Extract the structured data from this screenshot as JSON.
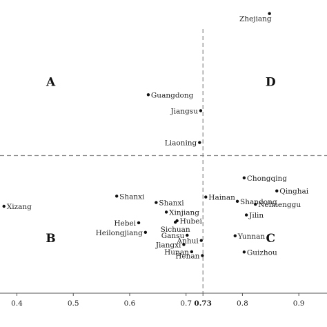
{
  "chart_data": {
    "type": "scatter",
    "title": "",
    "xlabel": "",
    "ylabel": "",
    "xlim": [
      0.37,
      0.95
    ],
    "ylim": [
      0,
      1
    ],
    "x_ticks": [
      {
        "value": 0.4,
        "label": "0.4",
        "bold": false
      },
      {
        "value": 0.5,
        "label": "0.5",
        "bold": false
      },
      {
        "value": 0.6,
        "label": "0.6",
        "bold": false
      },
      {
        "value": 0.7,
        "label": "0.7",
        "bold": false
      },
      {
        "value": 0.73,
        "label": "0.73",
        "bold": true
      },
      {
        "value": 0.8,
        "label": "0.8",
        "bold": false
      },
      {
        "value": 0.9,
        "label": "0.9",
        "bold": false
      }
    ],
    "threshold_x": 0.73,
    "threshold_y": 0.475,
    "grid": false,
    "quadrants": [
      {
        "label": "A",
        "x": 0.46,
        "y": 0.73
      },
      {
        "label": "D",
        "x": 0.85,
        "y": 0.73
      },
      {
        "label": "B",
        "x": 0.46,
        "y": 0.19
      },
      {
        "label": "C",
        "x": 0.85,
        "y": 0.19
      }
    ],
    "points": [
      {
        "name": "Zhejiang",
        "x": 0.848,
        "y": 0.965,
        "label_pos": "below-left"
      },
      {
        "name": "Guangdong",
        "x": 0.633,
        "y": 0.685,
        "label_pos": "right"
      },
      {
        "name": "Jiangsu",
        "x": 0.726,
        "y": 0.63,
        "label_pos": "left"
      },
      {
        "name": "Liaoning",
        "x": 0.724,
        "y": 0.52,
        "label_pos": "left"
      },
      {
        "name": "Chongqing",
        "x": 0.803,
        "y": 0.398,
        "label_pos": "right"
      },
      {
        "name": "Qinghai",
        "x": 0.861,
        "y": 0.353,
        "label_pos": "right"
      },
      {
        "name": "Hainan",
        "x": 0.735,
        "y": 0.332,
        "label_pos": "right"
      },
      {
        "name": "Shandong",
        "x": 0.791,
        "y": 0.317,
        "label_pos": "right"
      },
      {
        "name": "Neimenggu",
        "x": 0.823,
        "y": 0.307,
        "label_pos": "right"
      },
      {
        "name": "Jilin",
        "x": 0.807,
        "y": 0.27,
        "label_pos": "right"
      },
      {
        "name": "Shanxi",
        "x": 0.577,
        "y": 0.335,
        "label_pos": "right"
      },
      {
        "name": "Shanxi",
        "x": 0.647,
        "y": 0.313,
        "label_pos": "right"
      },
      {
        "name": "Xinjiang",
        "x": 0.665,
        "y": 0.28,
        "label_pos": "right"
      },
      {
        "name": "Xizang",
        "x": 0.377,
        "y": 0.3,
        "label_pos": "right"
      },
      {
        "name": "Hubei",
        "x": 0.684,
        "y": 0.25,
        "label_pos": "right"
      },
      {
        "name": "Hebei",
        "x": 0.616,
        "y": 0.243,
        "label_pos": "left"
      },
      {
        "name": "Sichuan",
        "x": 0.681,
        "y": 0.245,
        "label_pos": "below"
      },
      {
        "name": "Heilongjiang",
        "x": 0.628,
        "y": 0.21,
        "label_pos": "left"
      },
      {
        "name": "Gansu",
        "x": 0.702,
        "y": 0.2,
        "label_pos": "left"
      },
      {
        "name": "Anhui",
        "x": 0.727,
        "y": 0.182,
        "label_pos": "left"
      },
      {
        "name": "Yunnan",
        "x": 0.787,
        "y": 0.198,
        "label_pos": "right"
      },
      {
        "name": "Jiangxi",
        "x": 0.696,
        "y": 0.168,
        "label_pos": "left"
      },
      {
        "name": "Hunan",
        "x": 0.71,
        "y": 0.143,
        "label_pos": "left"
      },
      {
        "name": "Henan",
        "x": 0.729,
        "y": 0.13,
        "label_pos": "left"
      },
      {
        "name": "Guizhou",
        "x": 0.803,
        "y": 0.142,
        "label_pos": "right"
      }
    ],
    "colors": {
      "point": "#111111",
      "axis": "#555555",
      "threshold": "#888888"
    }
  }
}
